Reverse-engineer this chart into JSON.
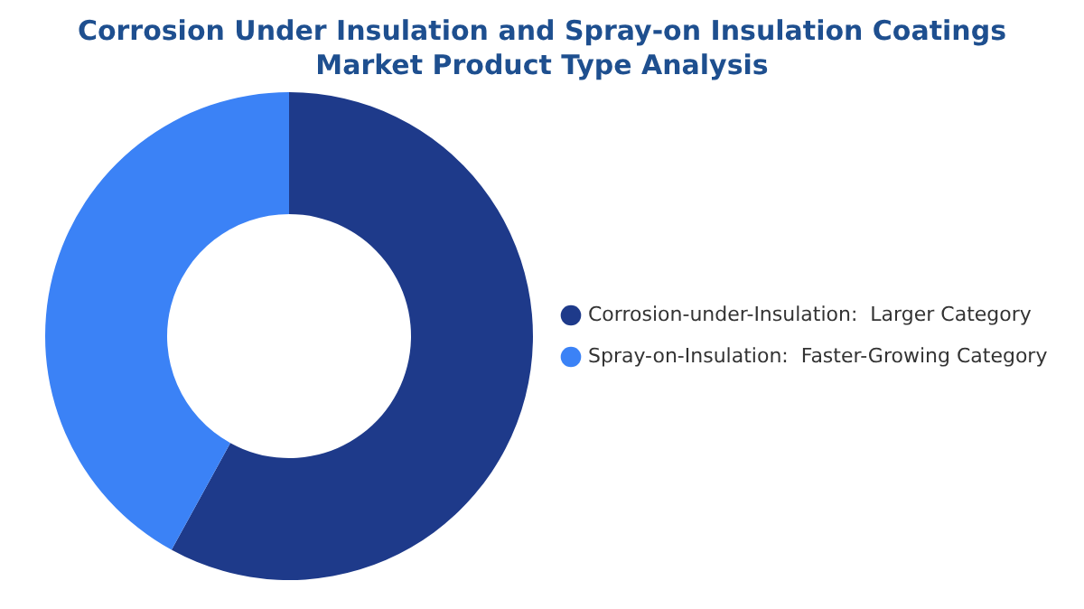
{
  "chart_data": {
    "type": "donut",
    "title": "Corrosion Under Insulation and Spray-on Insulation Coatings Market Product Type Analysis",
    "categories": [
      "Corrosion-under-Insulation:  Larger Category",
      "Spray-on-Insulation:  Faster-Growing Category"
    ],
    "values": [
      58,
      42
    ],
    "colors": [
      "#1e3a8a",
      "#3b82f6"
    ],
    "legend": "right"
  }
}
